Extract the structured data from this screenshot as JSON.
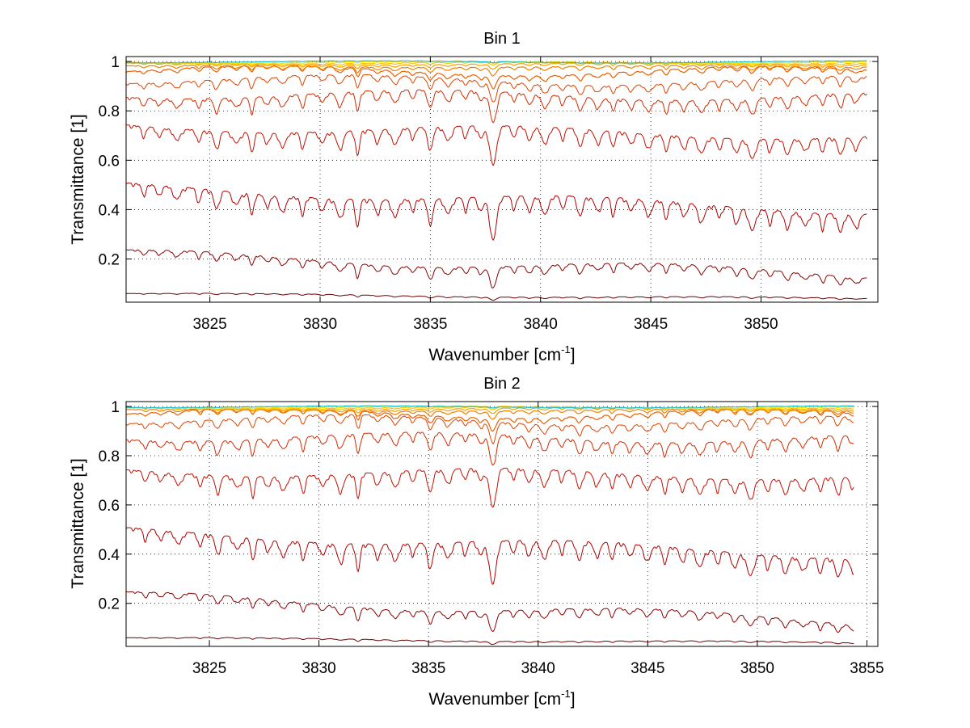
{
  "chart_data": [
    {
      "type": "line",
      "title": "Bin 1",
      "xlabel_main": "Wavenumber [cm",
      "xlabel_sup": "-1",
      "xlabel_close": "]",
      "ylabel": "Transmittance [1]",
      "xlim": [
        3821.2,
        3855.3
      ],
      "ylim": [
        0.025,
        1.02
      ],
      "x_ticks": [
        3825,
        3830,
        3835,
        3840,
        3845,
        3850
      ],
      "x_tick_labels": [
        "3825",
        "3830",
        "3835",
        "3840",
        "3845",
        "3850"
      ],
      "y_ticks": [
        0.2,
        0.4,
        0.6,
        0.8,
        1.0
      ],
      "y_tick_labels": [
        "0.2",
        "0.4",
        "0.6",
        "0.8",
        "1"
      ],
      "grid": true,
      "x_data_end": 3854.8,
      "series": [
        {
          "color": "#6b0000",
          "base_start": 0.06,
          "base_end": 0.04,
          "baseline": 0.055,
          "depth": 0.03
        },
        {
          "color": "#8b0000",
          "base_start": 0.22,
          "base_end": 0.14,
          "baseline": 0.16,
          "depth": 0.2
        },
        {
          "color": "#b00000",
          "base_start": 0.49,
          "base_end": 0.4,
          "baseline": 0.44,
          "depth": 0.42
        },
        {
          "color": "#c41000",
          "base_start": 0.74,
          "base_end": 0.7,
          "baseline": 0.72,
          "depth": 0.38
        },
        {
          "color": "#d42a00",
          "base_start": 0.87,
          "base_end": 0.86,
          "baseline": 0.88,
          "depth": 0.3
        },
        {
          "color": "#e04400",
          "base_start": 0.93,
          "base_end": 0.92,
          "baseline": 0.94,
          "depth": 0.2
        },
        {
          "color": "#ea6000",
          "base_start": 0.965,
          "base_end": 0.96,
          "baseline": 0.965,
          "depth": 0.12
        },
        {
          "color": "#f28000",
          "base_start": 0.98,
          "base_end": 0.98,
          "baseline": 0.985,
          "depth": 0.08
        },
        {
          "color": "#f8a000",
          "base_start": 0.99,
          "base_end": 0.99,
          "baseline": 0.99,
          "depth": 0.05
        },
        {
          "color": "#ffc000",
          "base_start": 0.995,
          "base_end": 0.995,
          "baseline": 0.995,
          "depth": 0.03
        },
        {
          "color": "#f0e000",
          "base_start": 0.998,
          "base_end": 0.998,
          "baseline": 0.998,
          "depth": 0.02
        },
        {
          "color": "#20c0d0",
          "base_start": 0.999,
          "base_end": 0.999,
          "baseline": 0.999,
          "depth": 0.01
        }
      ]
    },
    {
      "type": "line",
      "title": "Bin 2",
      "xlabel_main": "Wavenumber [cm",
      "xlabel_sup": "-1",
      "xlabel_close": "]",
      "ylabel": "Transmittance [1]",
      "xlim": [
        3821.2,
        3855.5
      ],
      "ylim": [
        0.025,
        1.02
      ],
      "x_ticks": [
        3825,
        3830,
        3835,
        3840,
        3845,
        3850,
        3855
      ],
      "x_tick_labels": [
        "3825",
        "3830",
        "3835",
        "3840",
        "3845",
        "3850",
        "3855"
      ],
      "y_ticks": [
        0.2,
        0.4,
        0.6,
        0.8,
        1.0
      ],
      "y_tick_labels": [
        "0.2",
        "0.4",
        "0.6",
        "0.8",
        "1"
      ],
      "grid": true,
      "x_data_end": 3854.4,
      "series": [
        {
          "color": "#6b0000",
          "base_start": 0.06,
          "base_end": 0.04,
          "baseline": 0.055,
          "depth": 0.03
        },
        {
          "color": "#8b0000",
          "base_start": 0.23,
          "base_end": 0.13,
          "baseline": 0.16,
          "depth": 0.2
        },
        {
          "color": "#b00000",
          "base_start": 0.49,
          "base_end": 0.4,
          "baseline": 0.44,
          "depth": 0.42
        },
        {
          "color": "#c41000",
          "base_start": 0.74,
          "base_end": 0.72,
          "baseline": 0.72,
          "depth": 0.38
        },
        {
          "color": "#d42a00",
          "base_start": 0.88,
          "base_end": 0.87,
          "baseline": 0.89,
          "depth": 0.3
        },
        {
          "color": "#e04400",
          "base_start": 0.95,
          "base_end": 0.94,
          "baseline": 0.955,
          "depth": 0.2
        },
        {
          "color": "#ea6000",
          "base_start": 0.975,
          "base_end": 0.97,
          "baseline": 0.975,
          "depth": 0.12
        },
        {
          "color": "#f28000",
          "base_start": 0.985,
          "base_end": 0.985,
          "baseline": 0.988,
          "depth": 0.08
        },
        {
          "color": "#f8a000",
          "base_start": 0.992,
          "base_end": 0.992,
          "baseline": 0.992,
          "depth": 0.05
        },
        {
          "color": "#ffc000",
          "base_start": 0.996,
          "base_end": 0.996,
          "baseline": 0.996,
          "depth": 0.03
        },
        {
          "color": "#f0e000",
          "base_start": 0.998,
          "base_end": 0.998,
          "baseline": 0.998,
          "depth": 0.02
        },
        {
          "color": "#20c0d0",
          "base_start": 0.999,
          "base_end": 0.999,
          "baseline": 0.999,
          "depth": 0.01
        }
      ]
    }
  ]
}
